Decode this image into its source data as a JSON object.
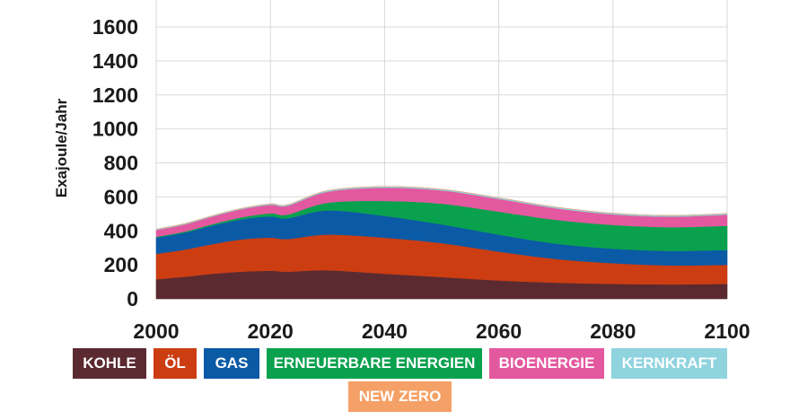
{
  "chart_data": {
    "type": "area",
    "stacked": true,
    "title": "",
    "xlabel": "",
    "ylabel": "Exajoule/Jahr",
    "xlim": [
      2000,
      2100
    ],
    "ylim": [
      0,
      1800
    ],
    "xticks": [
      2000,
      2020,
      2040,
      2060,
      2080,
      2100
    ],
    "yticks": [
      0,
      200,
      400,
      600,
      800,
      1000,
      1200,
      1400,
      1600
    ],
    "grid": true,
    "legend_position": "bottom",
    "x": [
      2000,
      2005,
      2010,
      2015,
      2020,
      2023,
      2030,
      2040,
      2050,
      2060,
      2070,
      2080,
      2090,
      2100
    ],
    "series": [
      {
        "name": "KOHLE",
        "color": "#5a2a30",
        "values": [
          115,
          130,
          148,
          160,
          165,
          160,
          168,
          148,
          128,
          108,
          95,
          88,
          85,
          88
        ]
      },
      {
        "name": "ÖL",
        "color": "#cc3d12",
        "values": [
          150,
          160,
          175,
          190,
          195,
          192,
          210,
          212,
          200,
          170,
          140,
          122,
          112,
          112
        ]
      },
      {
        "name": "GAS",
        "color": "#0b5aa6",
        "values": [
          95,
          100,
          110,
          118,
          125,
          122,
          142,
          128,
          110,
          100,
          90,
          85,
          85,
          88
        ]
      },
      {
        "name": "ERNEUERBARE ENERGIEN",
        "color": "#0aa14e",
        "values": [
          5,
          6,
          8,
          12,
          18,
          22,
          45,
          88,
          122,
          135,
          140,
          140,
          140,
          142
        ]
      },
      {
        "name": "BIOENERGIE",
        "color": "#e3589f",
        "values": [
          40,
          42,
          45,
          48,
          50,
          52,
          65,
          78,
          78,
          75,
          68,
          62,
          62,
          65
        ]
      },
      {
        "name": "KERNKRAFT",
        "color": "#8fd3df",
        "values": [
          5,
          5,
          5,
          5,
          6,
          6,
          7,
          7,
          7,
          7,
          7,
          7,
          7,
          7
        ]
      },
      {
        "name": "NEW ZERO",
        "color": "#f5a066",
        "values": [
          0,
          0,
          0,
          0,
          0,
          0,
          0,
          0,
          0,
          0,
          0,
          0,
          0,
          0
        ]
      }
    ]
  }
}
